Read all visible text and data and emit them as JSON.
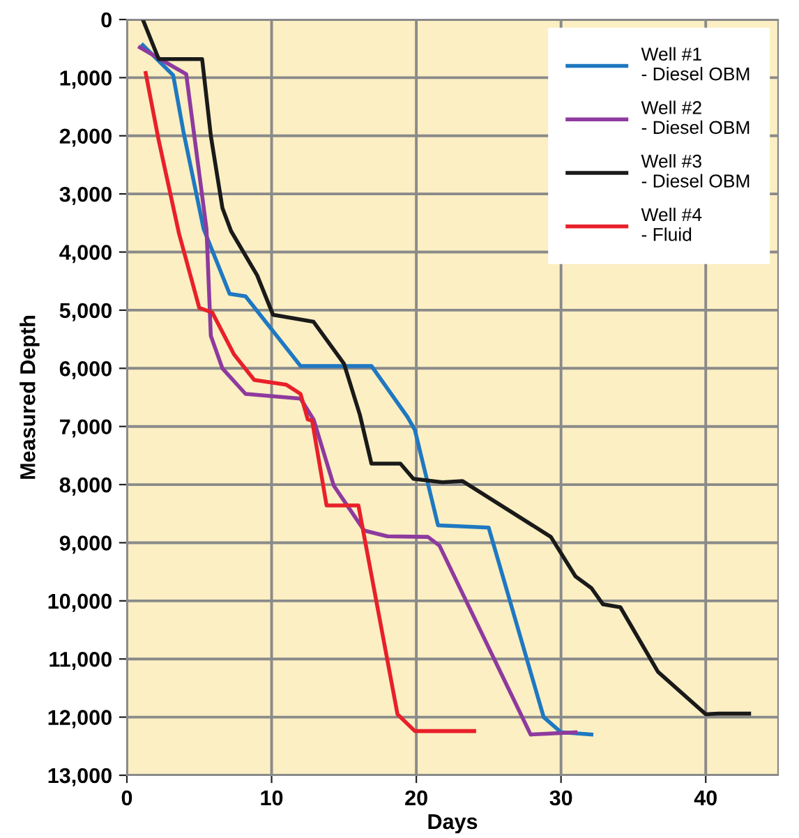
{
  "chart_data": {
    "type": "line",
    "xlabel": "Days",
    "ylabel": "Measured Depth",
    "xlim": [
      0,
      45
    ],
    "xticks": [
      0,
      10,
      20,
      30,
      40
    ],
    "ylim": [
      13000,
      0
    ],
    "yticks": [
      {
        "value": 0,
        "label": "0"
      },
      {
        "value": 1000,
        "label": "1,000"
      },
      {
        "value": 2000,
        "label": "2,000"
      },
      {
        "value": 3000,
        "label": "3,000"
      },
      {
        "value": 4000,
        "label": "4,000"
      },
      {
        "value": 5000,
        "label": "5,000"
      },
      {
        "value": 6000,
        "label": "6,000"
      },
      {
        "value": 7000,
        "label": "7,000"
      },
      {
        "value": 8000,
        "label": "8,000"
      },
      {
        "value": 9000,
        "label": "9,000"
      },
      {
        "value": 10000,
        "label": "10,000"
      },
      {
        "value": 11000,
        "label": "11,000"
      },
      {
        "value": 12000,
        "label": "12,000"
      },
      {
        "value": 13000,
        "label": "13,000"
      }
    ],
    "grid": true,
    "legend": "top right",
    "marker": "none",
    "line_style": "solid",
    "series": [
      {
        "name": "Well #1\n- Diesel OBM",
        "color": "#1f78c1",
        "x": [
          1.1,
          3.2,
          3.9,
          5.3,
          7.1,
          8.2,
          12,
          16.9,
          19.4,
          19.9,
          21.5,
          25,
          28.8,
          30,
          32.1
        ],
        "values": [
          440,
          960,
          1920,
          3600,
          4720,
          4760,
          5960,
          5960,
          6840,
          7060,
          8700,
          8740,
          12000,
          12260,
          12300
        ]
      },
      {
        "name": "Well #2\n- Diesel OBM",
        "color": "#8e3a9e",
        "x": [
          0.9,
          4.1,
          5.5,
          5.8,
          6.6,
          8.2,
          12,
          12.9,
          14.3,
          16.4,
          18,
          20.8,
          21.6,
          27.9,
          31
        ],
        "values": [
          480,
          940,
          3600,
          5440,
          6000,
          6440,
          6520,
          6880,
          8020,
          8790,
          8890,
          8900,
          9050,
          12300,
          12260
        ]
      },
      {
        "name": "Well #3\n- Diesel OBM",
        "color": "#1a1a1a",
        "x": [
          1.1,
          2.2,
          5.2,
          5.8,
          6.6,
          7.2,
          9,
          10.1,
          12.9,
          15,
          16.1,
          16.9,
          18.9,
          19.8,
          21.8,
          23.2,
          29.3,
          31,
          32.1,
          32.9,
          34.1,
          36.7,
          40,
          40.9,
          43
        ],
        "values": [
          0,
          680,
          680,
          2000,
          3240,
          3640,
          4400,
          5080,
          5200,
          5920,
          6800,
          7640,
          7640,
          7900,
          7960,
          7940,
          8900,
          9580,
          9780,
          10060,
          10110,
          11220,
          11950,
          11940,
          11940
        ]
      },
      {
        "name": "Well #4\n- Fluid",
        "color": "#e8202a",
        "x": [
          1.3,
          2.2,
          3.6,
          5,
          5.9,
          7.4,
          8.8,
          11,
          12,
          12.5,
          12.8,
          13.8,
          16,
          18.7,
          19.9,
          24
        ],
        "values": [
          920,
          2080,
          3680,
          4960,
          5040,
          5760,
          6200,
          6280,
          6440,
          6880,
          6900,
          8360,
          8360,
          11950,
          12240,
          12240
        ]
      }
    ]
  }
}
